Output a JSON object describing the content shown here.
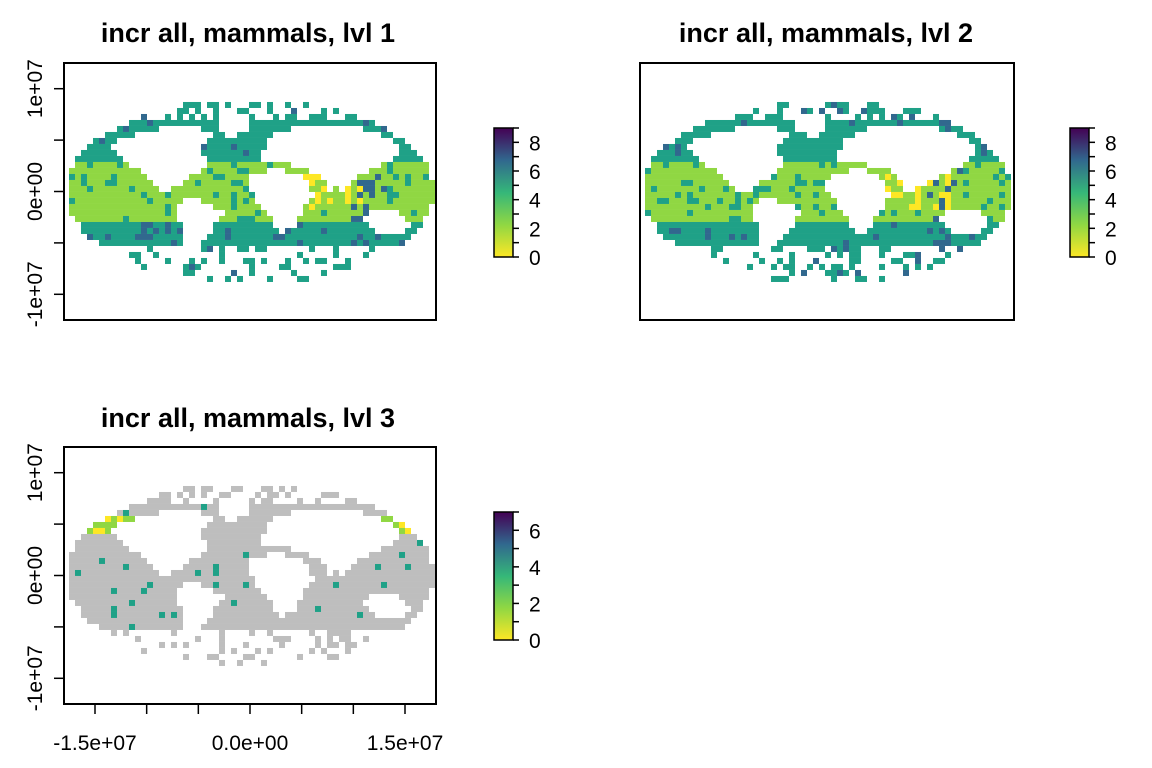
{
  "chart_data": [
    {
      "type": "heatmap",
      "title": "incr all, mammals, lvl 1",
      "xlim": [
        -18000000,
        18000000
      ],
      "ylim": [
        -12500000,
        12500000
      ],
      "y_ticks": [
        -10000000,
        -5000000,
        0,
        5000000,
        10000000
      ],
      "y_tick_labels": [
        "-1e+07",
        "0e+00",
        "1e+07"
      ],
      "y_tick_label_values": [
        -10000000,
        0,
        10000000
      ],
      "x_ticks": [],
      "x_tick_labels": [],
      "legend": {
        "placement": "right",
        "min": 0,
        "max": 9,
        "labels": [
          "0",
          "2",
          "4",
          "6",
          "8"
        ],
        "label_values": [
          0,
          2,
          4,
          6,
          8
        ]
      },
      "colors": {
        "high": "#440154",
        "mid_high": "#31688e",
        "mid": "#1fa187",
        "mid_low": "#90d743",
        "low": "#fde725",
        "na": "#bebebe"
      }
    },
    {
      "type": "heatmap",
      "title": "incr all, mammals, lvl 2",
      "xlim": [
        -18000000,
        18000000
      ],
      "ylim": [
        -12500000,
        12500000
      ],
      "y_ticks": [],
      "y_tick_labels": [],
      "x_ticks": [],
      "x_tick_labels": [],
      "legend": {
        "placement": "right",
        "min": 0,
        "max": 9,
        "labels": [
          "0",
          "2",
          "4",
          "6",
          "8"
        ],
        "label_values": [
          0,
          2,
          4,
          6,
          8
        ]
      },
      "colors": {
        "high": "#440154",
        "mid_high": "#31688e",
        "mid": "#1fa187",
        "mid_low": "#90d743",
        "low": "#fde725",
        "na": "#bebebe"
      }
    },
    {
      "type": "heatmap",
      "title": "incr all, mammals, lvl 3",
      "xlim": [
        -18000000,
        18000000
      ],
      "ylim": [
        -12500000,
        12500000
      ],
      "y_ticks": [
        -10000000,
        -5000000,
        0,
        5000000,
        10000000
      ],
      "y_tick_labels": [
        "-1e+07",
        "0e+00",
        "1e+07"
      ],
      "y_tick_label_values": [
        -10000000,
        0,
        10000000
      ],
      "x_ticks": [
        -15000000,
        -10000000,
        -5000000,
        0,
        5000000,
        10000000,
        15000000
      ],
      "x_tick_labels": [
        "-1.5e+07",
        "0.0e+00",
        "1.5e+07"
      ],
      "x_tick_label_values": [
        -15000000,
        0,
        15000000
      ],
      "legend": {
        "placement": "right",
        "min": 0,
        "max": 7,
        "labels": [
          "0",
          "2",
          "4",
          "6"
        ],
        "label_values": [
          0,
          2,
          4,
          6
        ]
      },
      "colors": {
        "high": "#440154",
        "mid_high": "#31688e",
        "mid": "#1fa187",
        "mid_low": "#90d743",
        "low": "#fde725",
        "na": "#bebebe"
      }
    }
  ]
}
